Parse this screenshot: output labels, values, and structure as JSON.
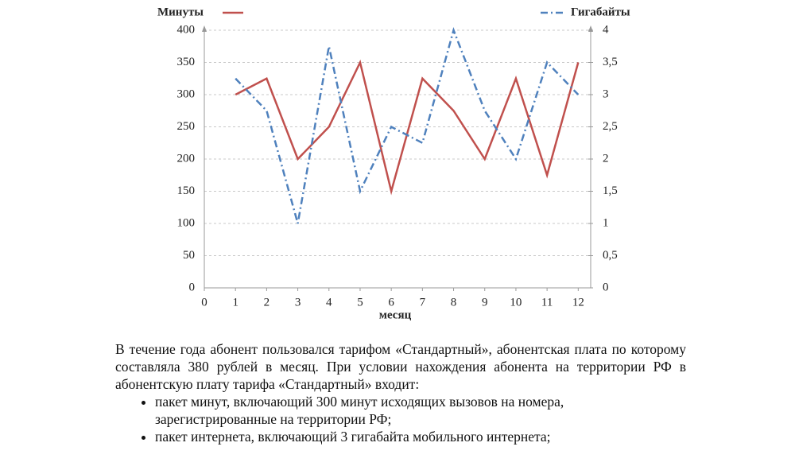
{
  "chart_data": {
    "type": "line",
    "x_label": "месяц",
    "x": [
      1,
      2,
      3,
      4,
      5,
      6,
      7,
      8,
      9,
      10,
      11,
      12
    ],
    "xlim": [
      0,
      12.4
    ],
    "xticks": [
      0,
      1,
      2,
      3,
      4,
      5,
      6,
      7,
      8,
      9,
      10,
      11,
      12
    ],
    "ylim": [
      0,
      400
    ],
    "yticks": [
      0,
      50,
      100,
      150,
      200,
      250,
      300,
      350,
      400
    ],
    "y2lim": [
      0,
      4
    ],
    "y2ticks": [
      0,
      {
        "value": 0.5,
        "label": "0,5"
      },
      1,
      {
        "value": 1.5,
        "label": "1,5"
      },
      2,
      {
        "value": 2.5,
        "label": "2,5"
      },
      3,
      {
        "value": 3.5,
        "label": "3,5"
      },
      4
    ],
    "grid": true,
    "series": [
      {
        "name": "Минуты",
        "color": "#c0504d",
        "values": [
          300,
          325,
          200,
          250,
          350,
          150,
          325,
          275,
          200,
          325,
          175,
          350
        ]
      },
      {
        "name": "Гигабайты",
        "color": "#4f81bd",
        "axis": "y2",
        "values": [
          3.25,
          2.75,
          1,
          3.75,
          1.5,
          2.5,
          2.25,
          4,
          2.75,
          2,
          3.5,
          3
        ]
      }
    ]
  },
  "text": {
    "paragraph": "В течение года абонент пользовался тарифом «Стандартный», абонентская плата по которому составляла 380 рублей в месяц. При условии нахождения абонента на территории РФ в абонентскую плату тарифа «Стандартный» входит:",
    "bullets": [
      "пакет минут, включающий 300 минут исходящих вызовов на номера, зарегистрированные на территории РФ;",
      "пакет интернета, включающий 3 гигабайта мобильного интернета;"
    ]
  }
}
